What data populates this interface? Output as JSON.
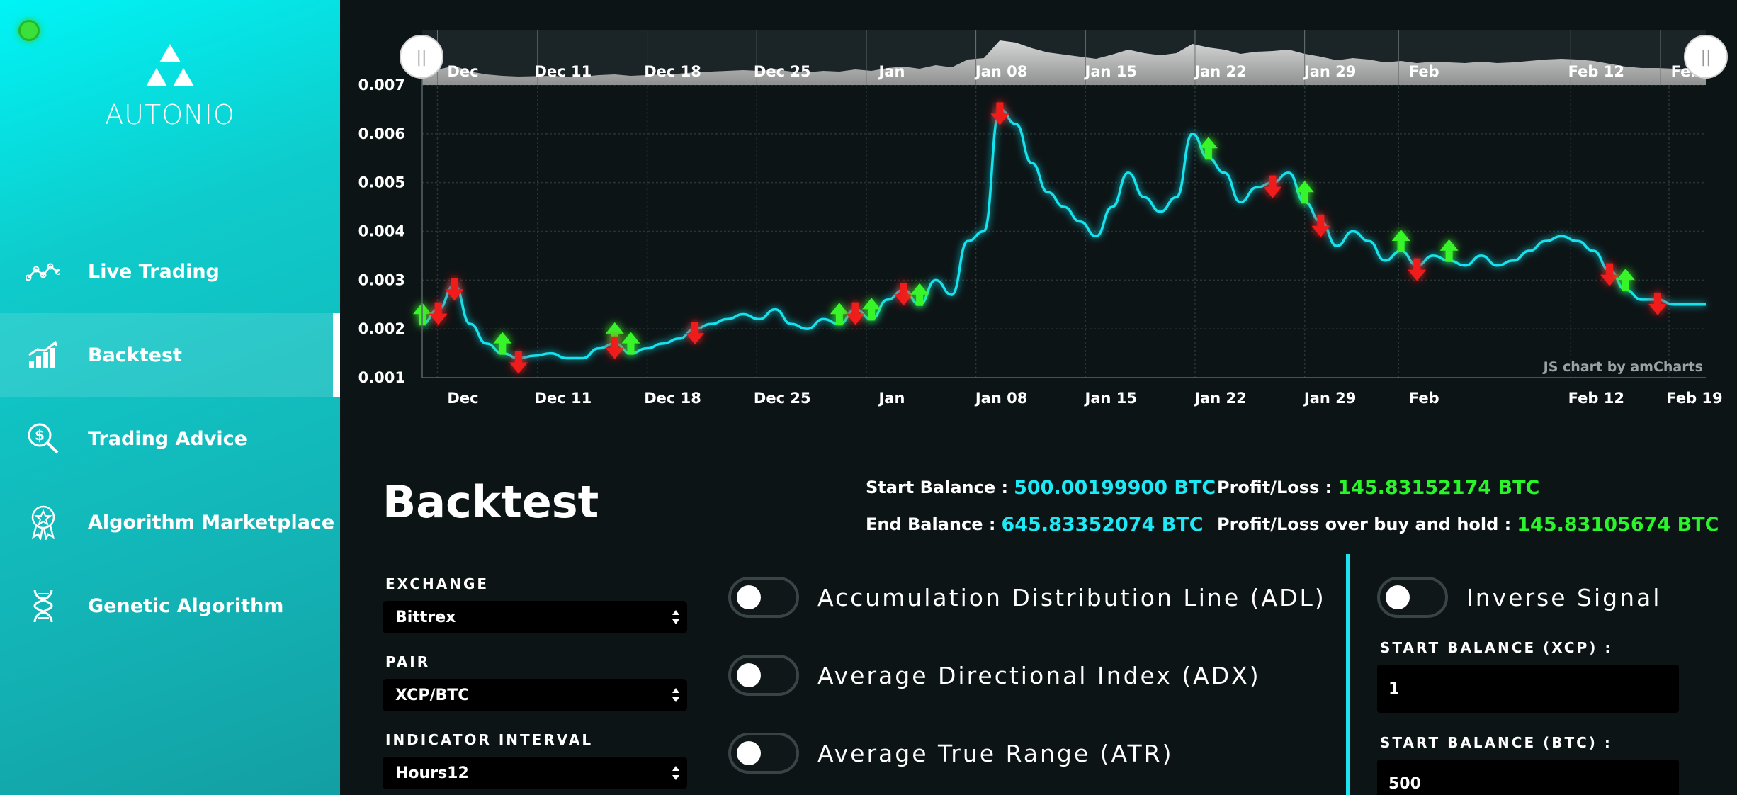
{
  "app": {
    "name": "AUTONIO"
  },
  "sidebar": {
    "items": [
      {
        "label": "Live Trading",
        "icon": "line-chart-icon",
        "active": false
      },
      {
        "label": "Backtest",
        "icon": "growth-chart-icon",
        "active": true
      },
      {
        "label": "Trading Advice",
        "icon": "dollar-search-icon",
        "active": false
      },
      {
        "label": "Algorithm Marketplace",
        "icon": "award-badge-icon",
        "active": false
      },
      {
        "label": "Genetic Algorithm",
        "icon": "dna-icon",
        "active": false
      }
    ]
  },
  "chart": {
    "watermark": "JS chart by amCharts",
    "scroll_handle_glyph": "||",
    "y_ticks": [
      "0.007",
      "0.006",
      "0.005",
      "0.004",
      "0.003",
      "0.002",
      "0.001"
    ],
    "x_ticks": [
      "Dec",
      "Dec 11",
      "Dec 18",
      "Dec 25",
      "Jan",
      "Jan 08",
      "Jan 15",
      "Jan 22",
      "Jan 29",
      "Feb",
      "Feb 12",
      "Feb 19"
    ],
    "scrollbar_ticks": [
      "Dec",
      "Dec 11",
      "Dec 18",
      "Dec 25",
      "Jan",
      "Jan 08",
      "Jan 15",
      "Jan 22",
      "Jan 29",
      "Feb",
      "Feb 12",
      "Feb"
    ],
    "colors": {
      "line": "#19e3ee",
      "buy": "#38f52a",
      "sell": "#f01c1c",
      "grid": "#2a3336"
    }
  },
  "chart_data": {
    "type": "line",
    "x": [
      "Dec 02",
      "Dec 03",
      "Dec 04",
      "Dec 05",
      "Dec 06",
      "Dec 07",
      "Dec 08",
      "Dec 09",
      "Dec 10",
      "Dec 11",
      "Dec 12",
      "Dec 13",
      "Dec 14",
      "Dec 15",
      "Dec 16",
      "Dec 17",
      "Dec 18",
      "Dec 19",
      "Dec 20",
      "Dec 21",
      "Dec 22",
      "Dec 23",
      "Dec 24",
      "Dec 25",
      "Dec 26",
      "Dec 27",
      "Dec 28",
      "Dec 29",
      "Dec 30",
      "Dec 31",
      "Jan 01",
      "Jan 02",
      "Jan 03",
      "Jan 04",
      "Jan 05",
      "Jan 06",
      "Jan 07",
      "Jan 08",
      "Jan 09",
      "Jan 10",
      "Jan 11",
      "Jan 12",
      "Jan 13",
      "Jan 14",
      "Jan 15",
      "Jan 16",
      "Jan 17",
      "Jan 18",
      "Jan 19",
      "Jan 20",
      "Jan 21",
      "Jan 22",
      "Jan 23",
      "Jan 24",
      "Jan 25",
      "Jan 26",
      "Jan 27",
      "Jan 28",
      "Jan 29",
      "Jan 30",
      "Jan 31",
      "Feb 01",
      "Feb 02",
      "Feb 03",
      "Feb 04",
      "Feb 05",
      "Feb 06",
      "Feb 07",
      "Feb 08",
      "Feb 09",
      "Feb 10",
      "Feb 11",
      "Feb 12",
      "Feb 13",
      "Feb 14",
      "Feb 15",
      "Feb 16",
      "Feb 17",
      "Feb 18",
      "Feb 19",
      "Feb 20"
    ],
    "series": [
      {
        "values": [
          0.0021,
          0.0024,
          0.0029,
          0.0021,
          0.0017,
          0.0015,
          0.0014,
          0.00145,
          0.0015,
          0.0014,
          0.0014,
          0.0016,
          0.0017,
          0.0015,
          0.0016,
          0.0017,
          0.0018,
          0.002,
          0.0021,
          0.0022,
          0.0023,
          0.0022,
          0.0024,
          0.0021,
          0.002,
          0.0022,
          0.0021,
          0.0024,
          0.0022,
          0.0026,
          0.0028,
          0.0025,
          0.003,
          0.0027,
          0.0038,
          0.004,
          0.0065,
          0.0062,
          0.0054,
          0.0048,
          0.0045,
          0.0042,
          0.0039,
          0.0045,
          0.0052,
          0.0047,
          0.0044,
          0.0047,
          0.006,
          0.0055,
          0.0052,
          0.0046,
          0.0049,
          0.005,
          0.0052,
          0.0046,
          0.0042,
          0.0037,
          0.004,
          0.0038,
          0.0034,
          0.0036,
          0.0033,
          0.0035,
          0.0034,
          0.0033,
          0.0035,
          0.0033,
          0.0034,
          0.0036,
          0.0038,
          0.0039,
          0.0038,
          0.0036,
          0.0032,
          0.0028,
          0.0026,
          0.0026,
          0.0025,
          0.0025,
          0.0025
        ]
      }
    ],
    "ylim": [
      0.001,
      0.007
    ],
    "markers": [
      {
        "x": "Dec 02",
        "kind": "buy"
      },
      {
        "x": "Dec 03",
        "kind": "sell"
      },
      {
        "x": "Dec 04",
        "kind": "sell"
      },
      {
        "x": "Dec 07",
        "kind": "buy"
      },
      {
        "x": "Dec 08",
        "kind": "sell"
      },
      {
        "x": "Dec 14",
        "kind": "buy"
      },
      {
        "x": "Dec 14",
        "kind": "sell"
      },
      {
        "x": "Dec 15",
        "kind": "buy"
      },
      {
        "x": "Dec 19",
        "kind": "sell"
      },
      {
        "x": "Dec 28",
        "kind": "buy"
      },
      {
        "x": "Dec 29",
        "kind": "sell"
      },
      {
        "x": "Dec 30",
        "kind": "buy"
      },
      {
        "x": "Jan 01",
        "kind": "sell"
      },
      {
        "x": "Jan 02",
        "kind": "buy"
      },
      {
        "x": "Jan 07",
        "kind": "sell"
      },
      {
        "x": "Jan 20",
        "kind": "buy"
      },
      {
        "x": "Jan 24",
        "kind": "sell"
      },
      {
        "x": "Jan 26",
        "kind": "buy"
      },
      {
        "x": "Jan 27",
        "kind": "sell"
      },
      {
        "x": "Feb 01",
        "kind": "buy"
      },
      {
        "x": "Feb 02",
        "kind": "sell"
      },
      {
        "x": "Feb 04",
        "kind": "buy"
      },
      {
        "x": "Feb 14",
        "kind": "sell"
      },
      {
        "x": "Feb 15",
        "kind": "buy"
      },
      {
        "x": "Feb 17",
        "kind": "sell"
      }
    ]
  },
  "main": {
    "title": "Backtest",
    "stats": {
      "start_balance_label": "Start Balance :",
      "start_balance_value": "500.00199900 BTC",
      "end_balance_label": "End Balance :",
      "end_balance_value": "645.83352074 BTC",
      "profit_loss_label": "Profit/Loss :",
      "profit_loss_value": "145.83152174 BTC",
      "profit_loss_hold_label": "Profit/Loss over buy and hold :",
      "profit_loss_hold_value": "145.83105674 BTC"
    },
    "exchange": {
      "label": "EXCHANGE",
      "value": "Bittrex"
    },
    "pair": {
      "label": "PAIR",
      "value": "XCP/BTC"
    },
    "interval": {
      "label": "INDICATOR INTERVAL",
      "value": "Hours12"
    },
    "indicators": [
      {
        "label": "Accumulation Distribution Line (ADL)",
        "on": false
      },
      {
        "label": "Average Directional Index (ADX)",
        "on": false
      },
      {
        "label": "Average True Range (ATR)",
        "on": false
      }
    ],
    "inverse_signal": {
      "label": "Inverse Signal",
      "on": false
    },
    "start_balance_xcp": {
      "label": "START BALANCE (XCP) :",
      "value": "1"
    },
    "start_balance_btc": {
      "label": "START BALANCE (BTC) :",
      "value": "500"
    }
  }
}
